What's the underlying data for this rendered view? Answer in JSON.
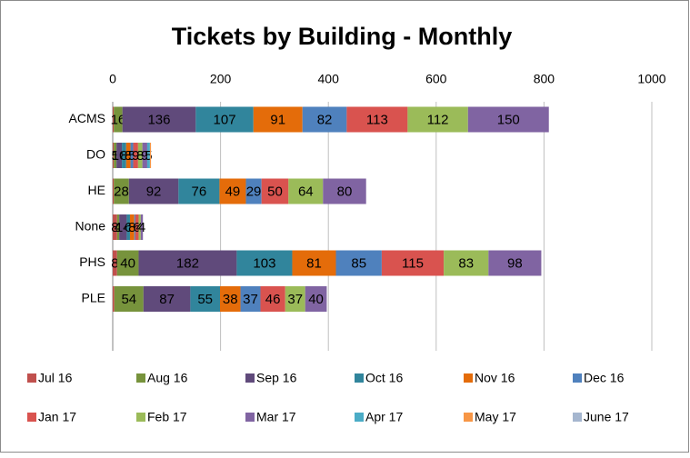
{
  "chart_data": {
    "type": "stacked_bar_horizontal",
    "title": "Tickets by Building - Monthly",
    "categories": [
      "ACMS",
      "DO",
      "HE",
      "None",
      "PHS",
      "PLE"
    ],
    "series": [
      {
        "name": "Jul 16",
        "color": "#c0504d",
        "values": [
          2,
          2,
          2,
          8,
          8,
          3
        ]
      },
      {
        "name": "Aug 16",
        "color": "#77933c",
        "values": [
          16,
          5,
          28,
          4,
          40,
          54
        ]
      },
      {
        "name": "Sep 16",
        "color": "#604a7b",
        "values": [
          136,
          10,
          92,
          14,
          182,
          87
        ]
      },
      {
        "name": "Oct 16",
        "color": "#31859c",
        "values": [
          107,
          8,
          76,
          6,
          103,
          55
        ]
      },
      {
        "name": "Nov 16",
        "color": "#e46c0a",
        "values": [
          91,
          8,
          49,
          8,
          81,
          38
        ]
      },
      {
        "name": "Dec 16",
        "color": "#4f81bd",
        "values": [
          82,
          5,
          29,
          2,
          85,
          37
        ]
      },
      {
        "name": "Jan 17",
        "color": "#d9534f",
        "values": [
          113,
          9,
          50,
          6,
          115,
          46
        ]
      },
      {
        "name": "Feb 17",
        "color": "#9bbb59",
        "values": [
          112,
          8,
          64,
          4,
          83,
          37
        ]
      },
      {
        "name": "Mar 17",
        "color": "#8064a2",
        "values": [
          150,
          9,
          80,
          4,
          98,
          40
        ]
      },
      {
        "name": "Apr 17",
        "color": "#4bacc6",
        "values": [
          0,
          5,
          0,
          0,
          0,
          0
        ]
      },
      {
        "name": "May 17",
        "color": "#f79646",
        "values": [
          0,
          2,
          0,
          0,
          0,
          0
        ]
      },
      {
        "name": "June 17",
        "color": "#a5b6cf",
        "values": [
          0,
          0,
          0,
          0,
          0,
          0
        ]
      }
    ],
    "xlim": [
      0,
      1000
    ],
    "xticks": [
      0,
      200,
      400,
      600,
      800,
      1000
    ],
    "grid": true,
    "legend": "bottom"
  }
}
